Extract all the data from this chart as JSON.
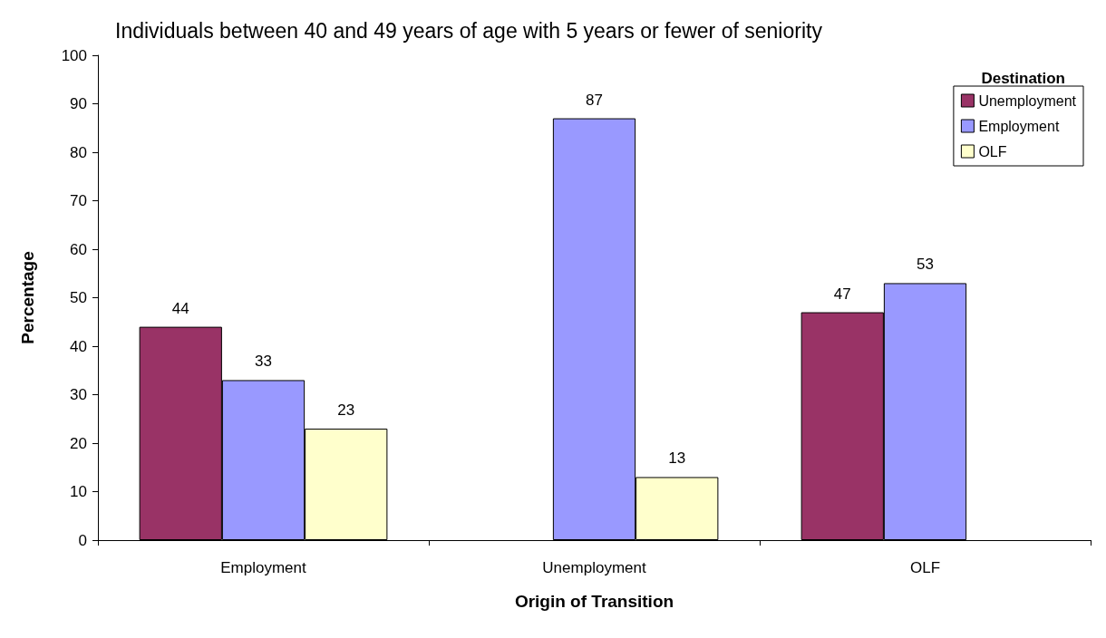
{
  "chart_data": {
    "type": "bar",
    "subtitle": "Individuals between 40 and 49 years of age with 5 years or fewer of seniority",
    "xlabel": "Origin of Transition",
    "ylabel": "Percentage",
    "legend_title": "Destination",
    "categories": [
      "Employment",
      "Unemployment",
      "OLF"
    ],
    "series": [
      {
        "name": "Unemployment",
        "color": "#993366",
        "values": [
          44,
          null,
          47
        ]
      },
      {
        "name": "Employment",
        "color": "#9999ff",
        "values": [
          33,
          87,
          53
        ]
      },
      {
        "name": "OLF",
        "color": "#ffffcc",
        "values": [
          23,
          13,
          null
        ]
      }
    ],
    "ylim": [
      0,
      100
    ],
    "yticks": [
      0,
      10,
      20,
      30,
      40,
      50,
      60,
      70,
      80,
      90,
      100
    ],
    "grid": false,
    "legend": "top right",
    "data_labels": true
  }
}
